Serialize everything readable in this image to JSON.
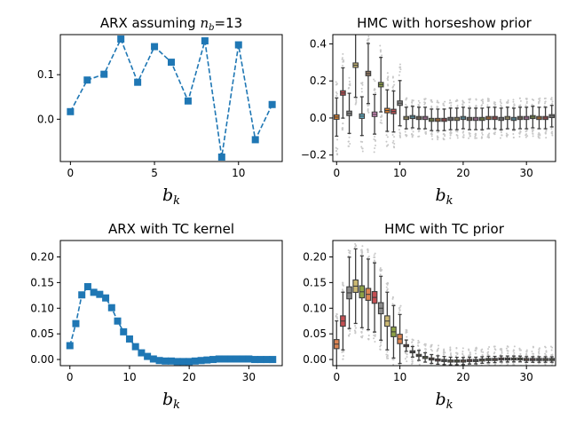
{
  "chart_data": [
    {
      "id": "arx13",
      "type": "line",
      "title": "ARX assuming $n_b=13$",
      "xlabel": "$b_k$",
      "ylabel": "",
      "xlim": [
        -0.6,
        12.6
      ],
      "ylim": [
        -0.095,
        0.19
      ],
      "xticks": [
        0,
        5,
        10
      ],
      "yticks": [
        0.0,
        0.1
      ],
      "ytick_labels": [
        "0.0",
        "0.1"
      ],
      "line_style": "dashed",
      "marker": "square",
      "color": "#1f77b4",
      "x": [
        0,
        1,
        2,
        3,
        4,
        5,
        6,
        7,
        8,
        9,
        10,
        11,
        12
      ],
      "values": [
        0.017,
        0.088,
        0.101,
        0.18,
        0.083,
        0.163,
        0.128,
        0.041,
        0.176,
        -0.085,
        0.167,
        -0.046,
        0.033
      ]
    },
    {
      "id": "hmc_horseshoe",
      "type": "box",
      "title": "HMC with horseshow prior",
      "xlabel": "$b_k$",
      "ylabel": "",
      "xlim": [
        -0.6,
        34.6
      ],
      "ylim": [
        -0.235,
        0.45
      ],
      "xticks": [
        0,
        10,
        20,
        30
      ],
      "yticks": [
        -0.2,
        0.0,
        0.2,
        0.4
      ],
      "ytick_labels": [
        "−0.2",
        "0.0",
        "0.2",
        "0.4"
      ],
      "box_palette": [
        "#e1812c",
        "#c44e52",
        "#8c8c8c",
        "#ccb974",
        "#64b5cd",
        "#937860",
        "#da8bc3",
        "#8da246"
      ],
      "medians": [
        0.005,
        0.135,
        0.025,
        0.285,
        0.01,
        0.24,
        0.02,
        0.18,
        0.04,
        0.035,
        0.08,
        0.0,
        0.005,
        0.0,
        0.0,
        -0.01,
        -0.01,
        -0.01,
        -0.005,
        -0.005,
        0.0,
        -0.005,
        -0.005,
        -0.005,
        0.0,
        0.0,
        -0.005,
        0.0,
        -0.005,
        0.0,
        0.0,
        0.005,
        0.0,
        0.0,
        0.01
      ]
    },
    {
      "id": "arx_tc",
      "type": "line",
      "title": "ARX with TC kernel",
      "xlabel": "$b_k$",
      "ylabel": "",
      "xlim": [
        -1.6,
        35.6
      ],
      "ylim": [
        -0.012,
        0.232
      ],
      "xticks": [
        0,
        10,
        20,
        30
      ],
      "yticks": [
        0.0,
        0.05,
        0.1,
        0.15,
        0.2
      ],
      "ytick_labels": [
        "0.00",
        "0.05",
        "0.10",
        "0.15",
        "0.20"
      ],
      "line_style": "dashed",
      "marker": "square",
      "color": "#1f77b4",
      "x": [
        0,
        1,
        2,
        3,
        4,
        5,
        6,
        7,
        8,
        9,
        10,
        11,
        12,
        13,
        14,
        15,
        16,
        17,
        18,
        19,
        20,
        21,
        22,
        23,
        24,
        25,
        26,
        27,
        28,
        29,
        30,
        31,
        32,
        33,
        34
      ],
      "values": [
        0.027,
        0.07,
        0.126,
        0.142,
        0.131,
        0.127,
        0.12,
        0.101,
        0.075,
        0.054,
        0.04,
        0.025,
        0.013,
        0.006,
        0.001,
        -0.002,
        -0.003,
        -0.003,
        -0.004,
        -0.004,
        -0.004,
        -0.003,
        -0.002,
        -0.001,
        0.0,
        0.001,
        0.001,
        0.001,
        0.001,
        0.001,
        0.001,
        0.0,
        0.0,
        0.0,
        0.0
      ]
    },
    {
      "id": "hmc_tc",
      "type": "box",
      "title": "HMC with TC prior",
      "xlabel": "$b_k$",
      "ylabel": "",
      "xlim": [
        -0.6,
        34.6
      ],
      "ylim": [
        -0.012,
        0.232
      ],
      "xticks": [
        0,
        10,
        20,
        30
      ],
      "yticks": [
        0.0,
        0.05,
        0.1,
        0.15,
        0.2
      ],
      "ytick_labels": [
        "0.00",
        "0.05",
        "0.10",
        "0.15",
        "0.20"
      ],
      "box_palette": [
        "#dd8452",
        "#c44e52",
        "#8c8c8c",
        "#ccb974",
        "#8da246"
      ],
      "medians": [
        0.03,
        0.075,
        0.13,
        0.143,
        0.132,
        0.127,
        0.121,
        0.1,
        0.075,
        0.054,
        0.04,
        0.027,
        0.015,
        0.008,
        0.004,
        0.001,
        -0.001,
        -0.002,
        -0.003,
        -0.003,
        -0.003,
        -0.002,
        -0.002,
        -0.001,
        0.0,
        0.0,
        0.001,
        0.001,
        0.001,
        0.001,
        0.0,
        0.0,
        0.0,
        0.0,
        0.0
      ]
    }
  ]
}
